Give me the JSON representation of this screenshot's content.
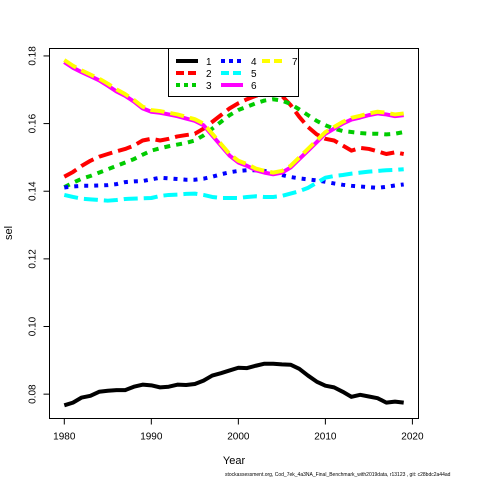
{
  "chart_data": {
    "type": "line",
    "xlabel": "Year",
    "ylabel": "sel",
    "xlim": [
      1978.3,
      2020.7
    ],
    "ylim": [
      0.0728,
      0.1822
    ],
    "xticks": [
      1980,
      1990,
      2000,
      2010,
      2020
    ],
    "yticks": [
      0.08,
      0.1,
      0.12,
      0.14,
      0.16,
      0.18
    ],
    "ytick_labels": [
      "0.08",
      "0.10",
      "0.12",
      "0.14",
      "0.16",
      "0.18"
    ],
    "grid": false,
    "legend_position": "top-center",
    "x": [
      1980,
      1981,
      1982,
      1983,
      1984,
      1985,
      1986,
      1987,
      1988,
      1989,
      1990,
      1991,
      1992,
      1993,
      1994,
      1995,
      1996,
      1997,
      1998,
      1999,
      2000,
      2001,
      2002,
      2003,
      2004,
      2005,
      2006,
      2007,
      2008,
      2009,
      2010,
      2011,
      2012,
      2013,
      2014,
      2015,
      2016,
      2017,
      2018,
      2019
    ],
    "series": [
      {
        "name": "1",
        "color": "#000000",
        "dash": "solid",
        "values": [
          0.0767,
          0.0775,
          0.079,
          0.0795,
          0.0807,
          0.081,
          0.0812,
          0.0812,
          0.0822,
          0.0828,
          0.0826,
          0.082,
          0.0822,
          0.0828,
          0.0827,
          0.083,
          0.084,
          0.0855,
          0.0862,
          0.087,
          0.0878,
          0.0877,
          0.0884,
          0.089,
          0.089,
          0.0888,
          0.0887,
          0.0875,
          0.0855,
          0.0837,
          0.0825,
          0.082,
          0.0807,
          0.0792,
          0.0798,
          0.0793,
          0.0788,
          0.0775,
          0.0778,
          0.0775
        ]
      },
      {
        "name": "2",
        "color": "#ff0000",
        "dash": "long",
        "values": [
          0.1443,
          0.1457,
          0.1475,
          0.149,
          0.1502,
          0.151,
          0.1518,
          0.1525,
          0.1535,
          0.155,
          0.1555,
          0.155,
          0.1555,
          0.1562,
          0.1566,
          0.157,
          0.1585,
          0.1605,
          0.1625,
          0.1645,
          0.166,
          0.1672,
          0.1682,
          0.1688,
          0.169,
          0.1682,
          0.1655,
          0.162,
          0.159,
          0.1568,
          0.1555,
          0.155,
          0.1535,
          0.152,
          0.1528,
          0.1525,
          0.1518,
          0.151,
          0.1515,
          0.151
        ]
      },
      {
        "name": "3",
        "color": "#00cc00",
        "dash": "short",
        "values": [
          0.1412,
          0.1425,
          0.1437,
          0.1445,
          0.1455,
          0.1465,
          0.1475,
          0.1485,
          0.1495,
          0.1508,
          0.152,
          0.1527,
          0.1533,
          0.1538,
          0.1543,
          0.155,
          0.1565,
          0.1585,
          0.1605,
          0.1625,
          0.164,
          0.165,
          0.166,
          0.1668,
          0.1672,
          0.1668,
          0.1658,
          0.1642,
          0.1625,
          0.1608,
          0.1595,
          0.1585,
          0.1578,
          0.1575,
          0.1572,
          0.157,
          0.157,
          0.1568,
          0.157,
          0.1575
        ]
      },
      {
        "name": "4",
        "color": "#0000ff",
        "dash": "dot",
        "values": [
          0.1411,
          0.1414,
          0.1416,
          0.1416,
          0.1417,
          0.1418,
          0.1421,
          0.1427,
          0.1429,
          0.143,
          0.1435,
          0.144,
          0.1438,
          0.1436,
          0.1434,
          0.1434,
          0.1437,
          0.1443,
          0.145,
          0.1456,
          0.146,
          0.1462,
          0.1462,
          0.146,
          0.1455,
          0.1448,
          0.1442,
          0.1438,
          0.1435,
          0.1432,
          0.1428,
          0.1423,
          0.1419,
          0.1416,
          0.1414,
          0.1412,
          0.141,
          0.1413,
          0.1417,
          0.142
        ]
      },
      {
        "name": "5",
        "color": "#00ffff",
        "dash": "long",
        "values": [
          0.1389,
          0.1383,
          0.1378,
          0.1376,
          0.1374,
          0.1372,
          0.1374,
          0.1377,
          0.1378,
          0.1379,
          0.138,
          0.1386,
          0.1389,
          0.139,
          0.1392,
          0.1393,
          0.1389,
          0.1383,
          0.138,
          0.138,
          0.138,
          0.1383,
          0.1385,
          0.1383,
          0.1383,
          0.1386,
          0.1393,
          0.14,
          0.141,
          0.1425,
          0.144,
          0.1445,
          0.1448,
          0.1452,
          0.1455,
          0.1458,
          0.146,
          0.1462,
          0.1463,
          0.1465
        ]
      },
      {
        "name": "6",
        "color": "#ff00ff",
        "dash": "solid",
        "values": [
          0.1782,
          0.1765,
          0.1752,
          0.174,
          0.1728,
          0.1712,
          0.1695,
          0.1682,
          0.1665,
          0.1645,
          0.1635,
          0.1632,
          0.1627,
          0.1622,
          0.1615,
          0.1608,
          0.1595,
          0.1565,
          0.1535,
          0.1505,
          0.1485,
          0.1475,
          0.1462,
          0.1455,
          0.145,
          0.1455,
          0.147,
          0.1495,
          0.152,
          0.1545,
          0.157,
          0.1585,
          0.16,
          0.1612,
          0.1618,
          0.1625,
          0.163,
          0.1627,
          0.1622,
          0.1625
        ]
      },
      {
        "name": "7",
        "color": "#ffff00",
        "dash": "long",
        "values": [
          0.1788,
          0.1771,
          0.1757,
          0.1745,
          0.1733,
          0.1718,
          0.1701,
          0.1687,
          0.167,
          0.165,
          0.164,
          0.1637,
          0.1632,
          0.1627,
          0.162,
          0.1613,
          0.16,
          0.157,
          0.154,
          0.151,
          0.149,
          0.148,
          0.1467,
          0.146,
          0.1455,
          0.146,
          0.1475,
          0.15,
          0.1525,
          0.155,
          0.1575,
          0.159,
          0.1605,
          0.1617,
          0.1623,
          0.163,
          0.1635,
          0.1632,
          0.1627,
          0.163
        ]
      }
    ]
  },
  "footnote": "stockassessment.org,  Cod_7ek_4a3NA_Final_Benchmark_with2019data,  r13123 ,  git: c28bdc2a44ad"
}
